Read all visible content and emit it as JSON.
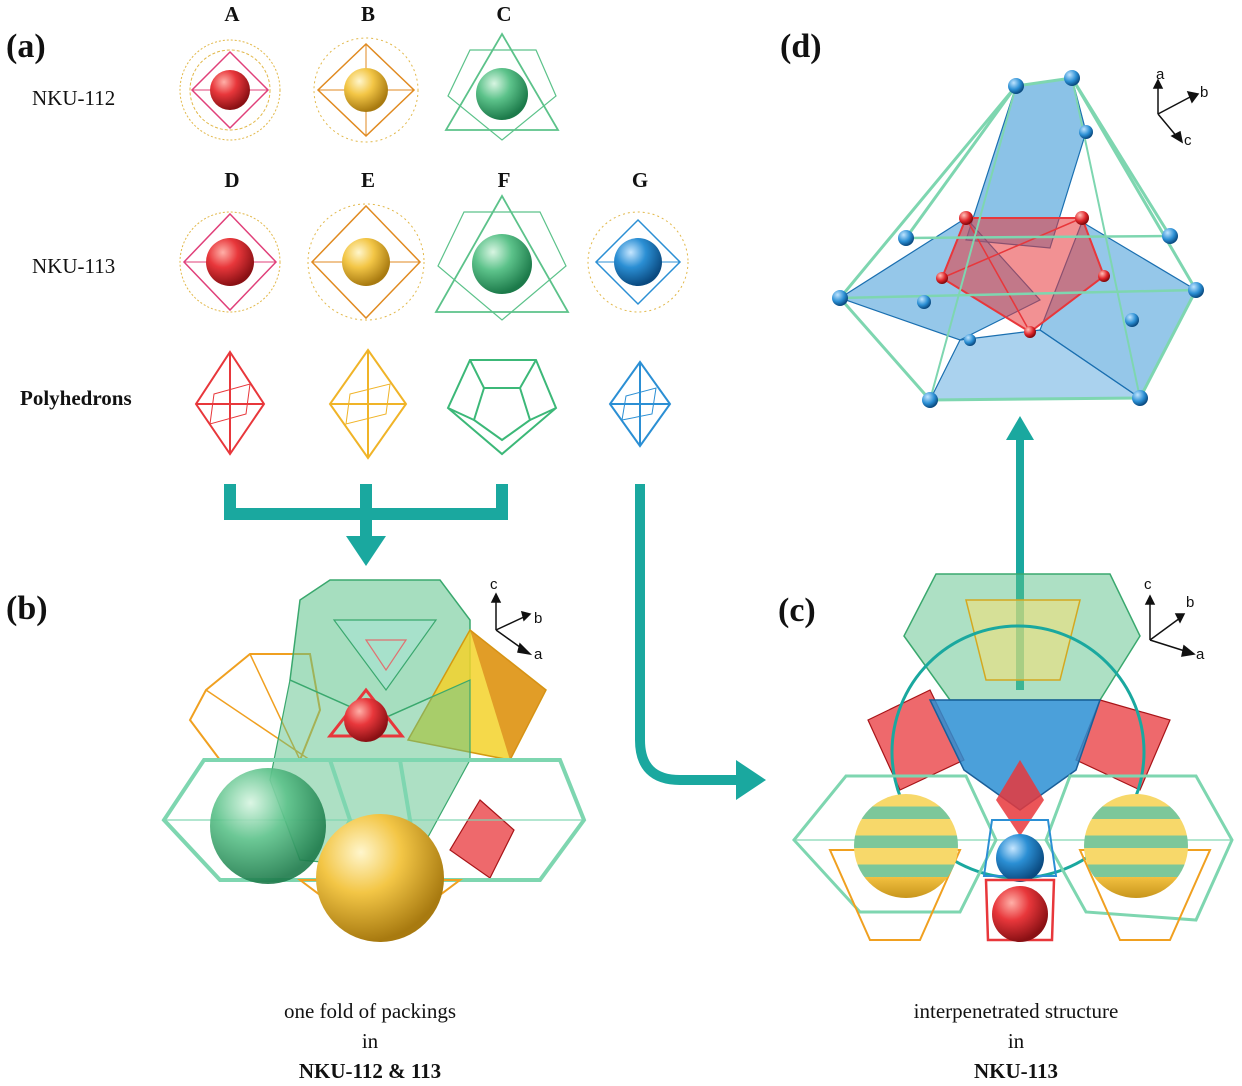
{
  "panels": {
    "a": {
      "label": "(a)"
    },
    "b": {
      "label": "(b)",
      "caption_line1": "one fold of packings",
      "caption_line2": "in",
      "caption_line3": "NKU-112 & 113"
    },
    "c": {
      "label": "(c)",
      "caption_line1": "interpenetrated structure",
      "caption_line2": "in",
      "caption_line3": "NKU-113"
    },
    "d": {
      "label": "(d)"
    }
  },
  "columns_top": [
    "A",
    "B",
    "C"
  ],
  "columns_mid": [
    "D",
    "E",
    "F",
    "G"
  ],
  "rows": {
    "nku112": "NKU-112",
    "nku113": "NKU-113",
    "polyhedrons": "Polyhedrons"
  },
  "axes": {
    "b": {
      "up": "c",
      "diag": "b",
      "right": "a"
    },
    "c": {
      "up": "c",
      "diag": "b",
      "right": "a"
    },
    "d": {
      "up": "a",
      "diag": "b",
      "right": "c"
    }
  },
  "colors": {
    "red": "#e8373b",
    "yellow": "#f3c646",
    "green": "#5cc28a",
    "blue": "#2b8fd4",
    "teal_arrow": "#1aa89f",
    "wire_green": "#7ed6b0",
    "wire_orange": "#f0a020"
  }
}
